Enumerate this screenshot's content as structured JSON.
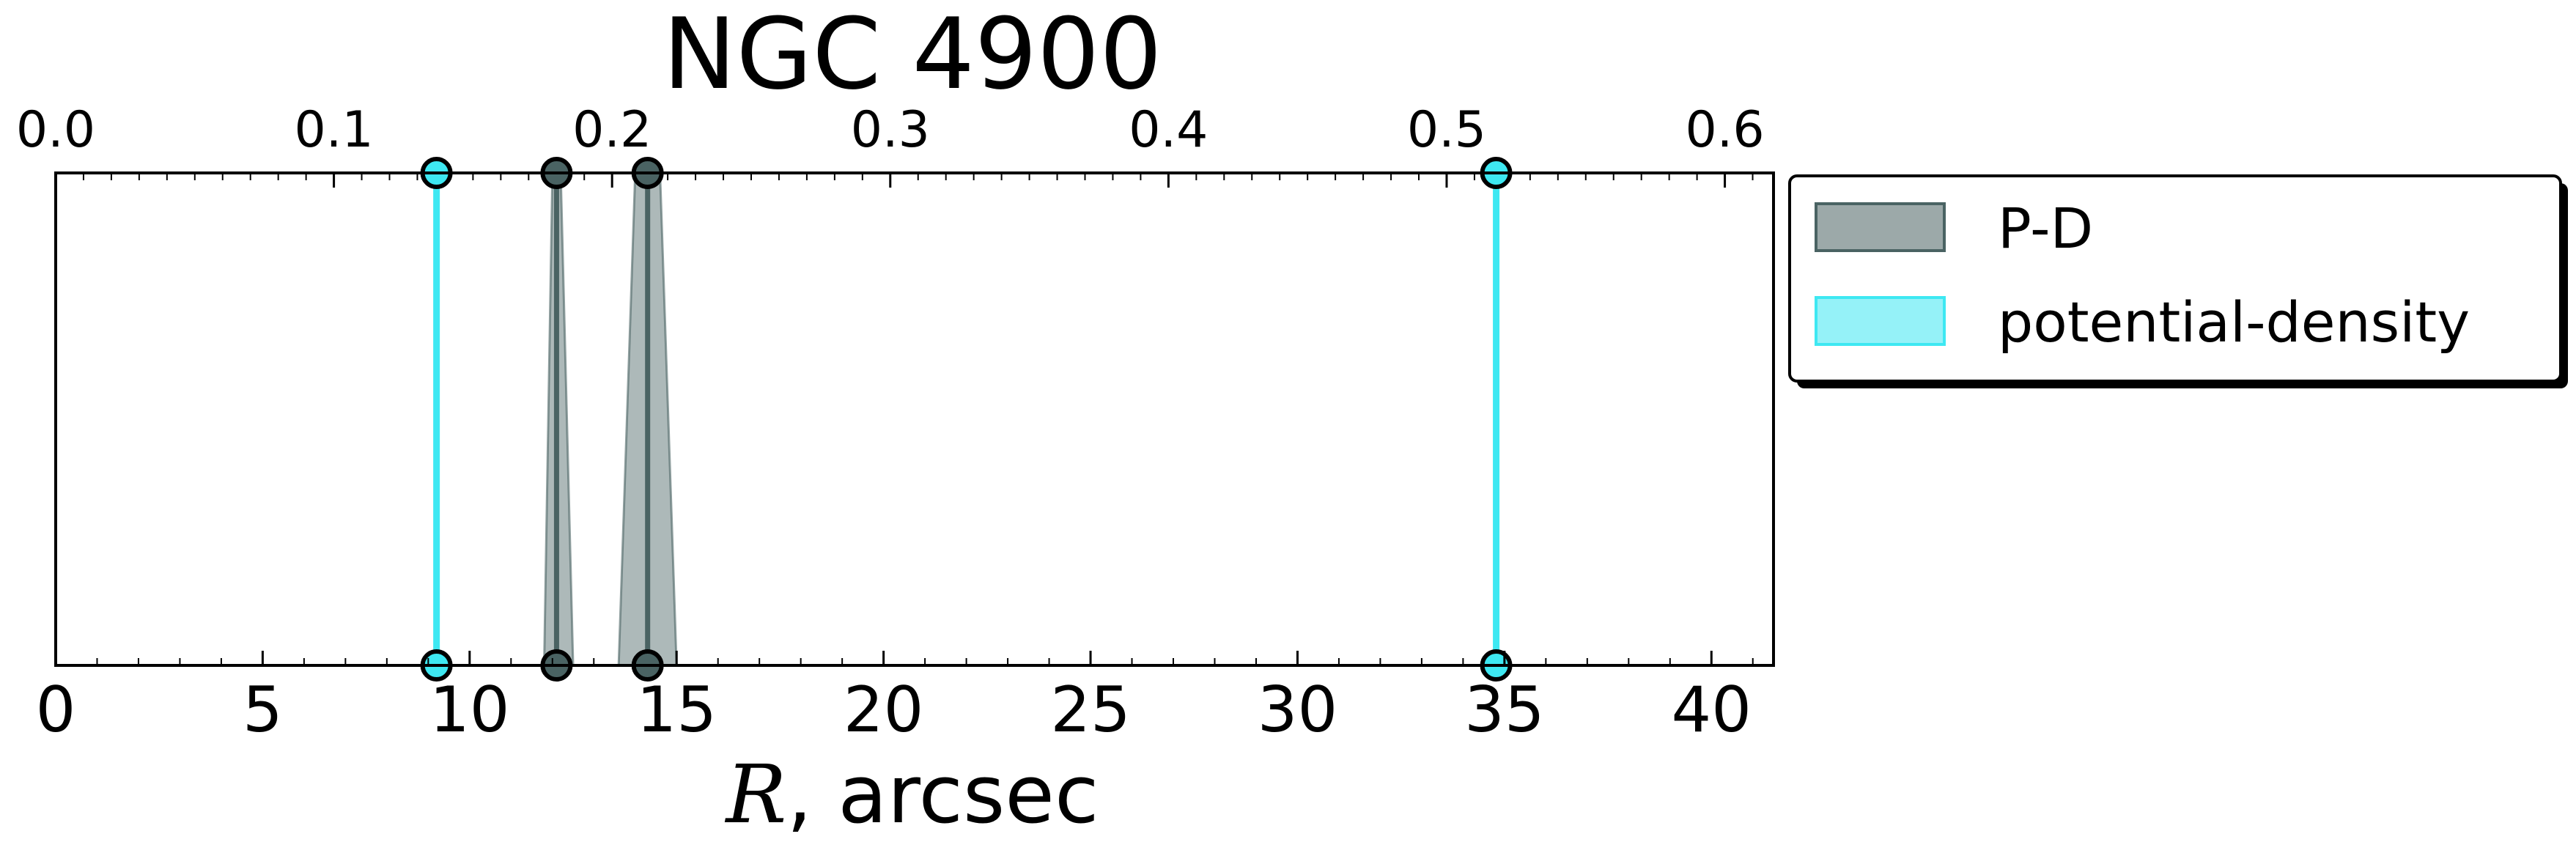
{
  "chart_data": {
    "type": "line",
    "title": "NGC 4900",
    "xlabel_symbol": "R",
    "xlabel_rest": ", arcsec",
    "xlim": [
      0,
      41.5
    ],
    "xticks": [
      "0",
      "5",
      "10",
      "15",
      "20",
      "25",
      "30",
      "35",
      "40"
    ],
    "top_xlim": [
      0,
      0.6175
    ],
    "top_xticks": [
      "0.0",
      "0.1",
      "0.2",
      "0.3",
      "0.4",
      "0.5",
      "0.6"
    ],
    "grid": false,
    "legend_position": "outside-right-top",
    "series": [
      {
        "name": "P-D",
        "color": "#4a6363",
        "kind": "vertical-bands",
        "lines": [
          {
            "center": 12.1,
            "low": 11.8,
            "high": 12.5,
            "top_low": 12.0,
            "top_high": 12.2
          },
          {
            "center": 14.3,
            "low": 13.6,
            "high": 15.0,
            "top_low": 14.0,
            "top_high": 14.6
          }
        ]
      },
      {
        "name": "potential-density",
        "color": "#3ee8f2",
        "kind": "vertical-lines",
        "lines": [
          {
            "center": 9.2
          },
          {
            "center": 34.8
          }
        ]
      }
    ]
  }
}
